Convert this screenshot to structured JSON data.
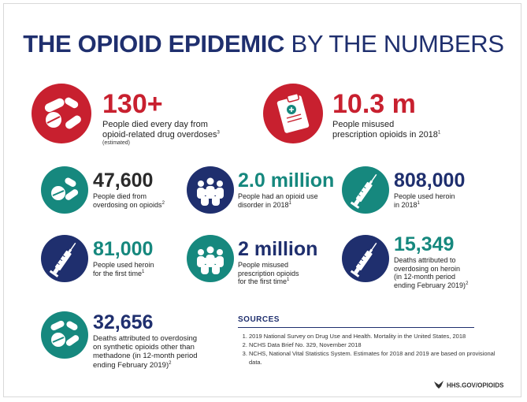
{
  "title": {
    "bold": "THE OPIOID EPIDEMIC",
    "light": "BY THE NUMBERS"
  },
  "stats": {
    "died_daily": {
      "number": "130+",
      "line1": "People died every day from",
      "line2": "opioid-related drug overdoses",
      "sup": "3",
      "note": "(estimated)"
    },
    "misused_rx": {
      "number": "10.3 m",
      "line1": "People misused",
      "line2": "prescription opioids in 2018",
      "sup": "1"
    },
    "died_overdose": {
      "number": "47,600",
      "line1": "People died from",
      "line2": "overdosing on opioids",
      "sup": "2"
    },
    "opioid_disorder": {
      "number": "2.0 million",
      "line1": "People had an opioid use",
      "line2": "disorder in 2018",
      "sup": "1"
    },
    "used_heroin": {
      "number": "808,000",
      "line1": "People used heroin",
      "line2": "in 2018",
      "sup": "1"
    },
    "heroin_first": {
      "number": "81,000",
      "line1": "People used heroin",
      "line2": "for the first time",
      "sup": "1"
    },
    "misused_first": {
      "number": "2 million",
      "line1": "People misused",
      "line2": "prescription opioids",
      "line3": "for the first time",
      "sup": "1"
    },
    "heroin_deaths": {
      "number": "15,349",
      "line1": "Deaths attributed to",
      "line2": "overdosing on heroin",
      "line3": "(in 12-month period",
      "line4": "ending February 2019)",
      "sup": "2"
    },
    "synthetic_deaths": {
      "number": "32,656",
      "line1": "Deaths attributed to overdosing",
      "line2": "on synthetic opioids other than",
      "line3": "methadone (in 12-month period",
      "line4": "ending February 2019)",
      "sup": "2"
    }
  },
  "sources": {
    "heading": "SOURCES",
    "items": [
      "2019 National Survey on Drug Use and Health. Mortality in the United States, 2018",
      "NCHS Data Brief No. 329, November 2018",
      "NCHS, National Vital Statistics System.  Estimates for 2018 and 2019 are based on provisional data."
    ]
  },
  "footer": {
    "logo_text": "HHS.GOV/OPIOIDS"
  },
  "colors": {
    "red": "#c8202f",
    "teal": "#16887e",
    "navy": "#1f2f6e"
  },
  "icons": [
    "pills-icon",
    "clipboard-icon",
    "people-icon",
    "syringe-icon"
  ]
}
